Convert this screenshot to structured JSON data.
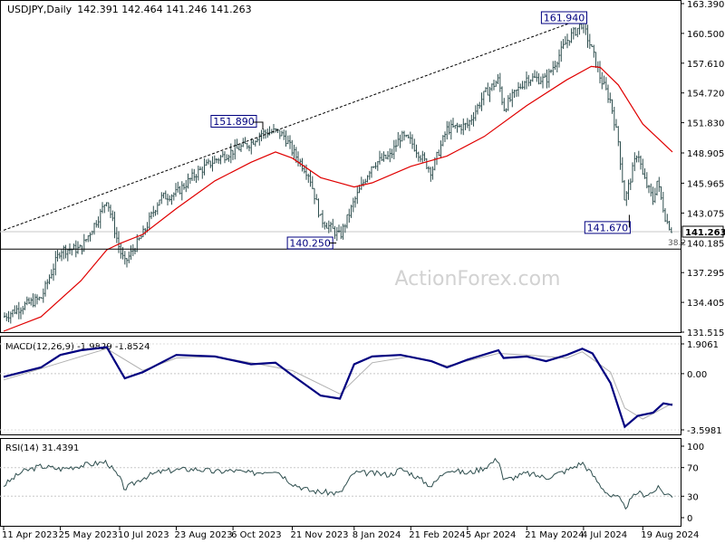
{
  "header": {
    "symbol": "USDJPY,Daily",
    "ohlc": "142.391 142.464 141.246 141.263"
  },
  "watermark": "ActionForex.com",
  "colors": {
    "price_bars": "#2f4f4f",
    "ma": "#e00000",
    "macd_line": "#000080",
    "macd_signal": "#b0b0b0",
    "rsi": "#2f4f4f",
    "grid": "#c8c8c8"
  },
  "chart_data": [
    {
      "type": "line",
      "title": "USDJPY,Daily",
      "x_labels": [
        "11 Apr 2023",
        "25 May 2023",
        "10 Jul 2023",
        "23 Aug 2023",
        "6 Oct 2023",
        "21 Nov 2023",
        "8 Jan 2024",
        "21 Feb 2024",
        "5 Apr 2024",
        "21 May 2024",
        "4 Jul 2024",
        "19 Aug 2024"
      ],
      "y_ticks": [
        "163.390",
        "160.500",
        "157.610",
        "154.720",
        "151.830",
        "148.905",
        "145.965",
        "143.075",
        "140.185",
        "137.295",
        "134.405",
        "131.515"
      ],
      "ylim": [
        131.515,
        163.39
      ],
      "price_label": "141.263",
      "annotations": [
        {
          "text": "161.940",
          "date": "2024-07-03",
          "value": 161.94
        },
        {
          "text": "151.890",
          "date": "2023-10-27",
          "value": 151.89
        },
        {
          "text": "140.250",
          "date": "2023-12-28",
          "value": 140.25
        },
        {
          "text": "141.670",
          "date": "2024-08-05",
          "value": 141.67
        },
        {
          "text": "38.2",
          "level": 139.58
        }
      ],
      "trendline": [
        {
          "date": "2023-04-11",
          "value": 141.4
        },
        {
          "date": "2024-07-03",
          "value": 161.94
        }
      ],
      "horizontal_levels": [
        141.263,
        139.58
      ],
      "series": [
        {
          "kind": "close",
          "points": [
            [
              "2023-04-11",
              133.0
            ],
            [
              "2023-04-25",
              134.0
            ],
            [
              "2023-05-10",
              134.8
            ],
            [
              "2023-05-25",
              139.5
            ],
            [
              "2023-06-10",
              139.6
            ],
            [
              "2023-06-25",
              143.0
            ],
            [
              "2023-06-30",
              144.5
            ],
            [
              "2023-07-10",
              139.5
            ],
            [
              "2023-07-14",
              138.2
            ],
            [
              "2023-07-28",
              141.0
            ],
            [
              "2023-08-10",
              144.5
            ],
            [
              "2023-08-23",
              145.0
            ],
            [
              "2023-09-08",
              147.0
            ],
            [
              "2023-09-22",
              148.2
            ],
            [
              "2023-10-06",
              149.1
            ],
            [
              "2023-10-20",
              149.9
            ],
            [
              "2023-10-27",
              150.8
            ],
            [
              "2023-11-08",
              151.0
            ],
            [
              "2023-11-15",
              150.5
            ],
            [
              "2023-11-21",
              149.1
            ],
            [
              "2023-12-04",
              146.8
            ],
            [
              "2023-12-13",
              142.5
            ],
            [
              "2023-12-28",
              140.8
            ],
            [
              "2024-01-08",
              144.2
            ],
            [
              "2024-01-22",
              147.8
            ],
            [
              "2024-02-05",
              148.6
            ],
            [
              "2024-02-13",
              150.5
            ],
            [
              "2024-02-21",
              150.0
            ],
            [
              "2024-03-08",
              147.1
            ],
            [
              "2024-03-20",
              151.2
            ],
            [
              "2024-04-05",
              151.6
            ],
            [
              "2024-04-18",
              154.6
            ],
            [
              "2024-04-29",
              156.0
            ],
            [
              "2024-05-03",
              153.2
            ],
            [
              "2024-05-21",
              156.2
            ],
            [
              "2024-06-05",
              156.0
            ],
            [
              "2024-06-21",
              159.8
            ],
            [
              "2024-07-03",
              161.5
            ],
            [
              "2024-07-11",
              158.7
            ],
            [
              "2024-07-17",
              156.2
            ],
            [
              "2024-07-25",
              153.9
            ],
            [
              "2024-07-31",
              150.0
            ],
            [
              "2024-08-05",
              144.2
            ],
            [
              "2024-08-15",
              149.2
            ],
            [
              "2024-08-19",
              146.7
            ],
            [
              "2024-08-27",
              144.3
            ],
            [
              "2024-08-30",
              146.2
            ],
            [
              "2024-09-06",
              142.4
            ],
            [
              "2024-09-11",
              141.263
            ]
          ]
        },
        {
          "kind": "moving-average",
          "points": [
            [
              "2023-04-11",
              131.6
            ],
            [
              "2023-05-10",
              133.0
            ],
            [
              "2023-06-10",
              136.5
            ],
            [
              "2023-06-30",
              139.5
            ],
            [
              "2023-07-10",
              140.1
            ],
            [
              "2023-07-28",
              141.0
            ],
            [
              "2023-08-23",
              143.5
            ],
            [
              "2023-09-22",
              146.2
            ],
            [
              "2023-10-20",
              148.0
            ],
            [
              "2023-11-08",
              149.0
            ],
            [
              "2023-11-21",
              148.4
            ],
            [
              "2023-12-13",
              146.5
            ],
            [
              "2024-01-08",
              145.6
            ],
            [
              "2024-01-22",
              146.0
            ],
            [
              "2024-02-21",
              147.6
            ],
            [
              "2024-03-20",
              148.6
            ],
            [
              "2024-04-18",
              150.5
            ],
            [
              "2024-05-21",
              153.5
            ],
            [
              "2024-06-21",
              156.0
            ],
            [
              "2024-07-10",
              157.3
            ],
            [
              "2024-07-17",
              157.2
            ],
            [
              "2024-07-31",
              155.5
            ],
            [
              "2024-08-19",
              151.7
            ],
            [
              "2024-09-11",
              149.0
            ]
          ]
        }
      ]
    },
    {
      "type": "line",
      "title": "MACD(12,26,9) -1.9829 -1.8524",
      "y_ticks": [
        "1.9061",
        "0.00",
        "-3.5981"
      ],
      "ylim": [
        -3.5981,
        1.9061
      ],
      "series": [
        {
          "kind": "macd",
          "points": [
            [
              "2023-04-11",
              -0.2
            ],
            [
              "2023-05-10",
              0.4
            ],
            [
              "2023-05-25",
              1.2
            ],
            [
              "2023-06-10",
              1.5
            ],
            [
              "2023-06-30",
              1.7
            ],
            [
              "2023-07-14",
              -0.3
            ],
            [
              "2023-07-28",
              0.1
            ],
            [
              "2023-08-23",
              1.2
            ],
            [
              "2023-09-22",
              1.1
            ],
            [
              "2023-10-20",
              0.6
            ],
            [
              "2023-11-08",
              0.7
            ],
            [
              "2023-11-21",
              -0.1
            ],
            [
              "2023-12-13",
              -1.4
            ],
            [
              "2023-12-28",
              -1.6
            ],
            [
              "2024-01-08",
              0.6
            ],
            [
              "2024-01-22",
              1.1
            ],
            [
              "2024-02-13",
              1.2
            ],
            [
              "2024-03-08",
              0.8
            ],
            [
              "2024-03-20",
              0.4
            ],
            [
              "2024-04-05",
              0.9
            ],
            [
              "2024-04-29",
              1.5
            ],
            [
              "2024-05-03",
              1.0
            ],
            [
              "2024-05-21",
              1.1
            ],
            [
              "2024-06-05",
              0.8
            ],
            [
              "2024-06-21",
              1.2
            ],
            [
              "2024-07-03",
              1.6
            ],
            [
              "2024-07-11",
              1.3
            ],
            [
              "2024-07-25",
              -0.6
            ],
            [
              "2024-08-05",
              -3.4
            ],
            [
              "2024-08-15",
              -2.7
            ],
            [
              "2024-08-27",
              -2.5
            ],
            [
              "2024-09-04",
              -1.9
            ],
            [
              "2024-09-11",
              -2.0
            ]
          ]
        },
        {
          "kind": "signal",
          "points": [
            [
              "2023-04-11",
              -0.4
            ],
            [
              "2023-05-25",
              0.7
            ],
            [
              "2023-06-30",
              1.6
            ],
            [
              "2023-07-28",
              0.2
            ],
            [
              "2023-08-23",
              1.0
            ],
            [
              "2023-09-22",
              1.1
            ],
            [
              "2023-10-20",
              0.7
            ],
            [
              "2023-11-21",
              0.2
            ],
            [
              "2023-12-28",
              -1.3
            ],
            [
              "2024-01-22",
              0.7
            ],
            [
              "2024-02-21",
              1.1
            ],
            [
              "2024-03-20",
              0.5
            ],
            [
              "2024-04-29",
              1.3
            ],
            [
              "2024-05-21",
              1.2
            ],
            [
              "2024-06-21",
              1.0
            ],
            [
              "2024-07-03",
              1.4
            ],
            [
              "2024-07-25",
              0.1
            ],
            [
              "2024-08-05",
              -2.2
            ],
            [
              "2024-08-19",
              -2.9
            ],
            [
              "2024-09-04",
              -2.2
            ],
            [
              "2024-09-11",
              -1.9
            ]
          ]
        }
      ]
    },
    {
      "type": "line",
      "title": "RSI(14) 31.4391",
      "y_ticks": [
        "100",
        "70",
        "30",
        "0"
      ],
      "ylim": [
        0,
        100
      ],
      "series": [
        {
          "kind": "rsi",
          "points": [
            [
              "2023-04-11",
              45
            ],
            [
              "2023-04-25",
              64
            ],
            [
              "2023-05-10",
              72
            ],
            [
              "2023-05-25",
              68
            ],
            [
              "2023-06-10",
              73
            ],
            [
              "2023-06-30",
              78
            ],
            [
              "2023-07-10",
              55
            ],
            [
              "2023-07-14",
              40
            ],
            [
              "2023-07-28",
              56
            ],
            [
              "2023-08-10",
              64
            ],
            [
              "2023-08-23",
              67
            ],
            [
              "2023-09-08",
              68
            ],
            [
              "2023-09-22",
              64
            ],
            [
              "2023-10-06",
              66
            ],
            [
              "2023-10-20",
              62
            ],
            [
              "2023-10-27",
              64
            ],
            [
              "2023-11-08",
              67
            ],
            [
              "2023-11-21",
              48
            ],
            [
              "2023-12-04",
              38
            ],
            [
              "2023-12-13",
              36
            ],
            [
              "2023-12-28",
              34
            ],
            [
              "2024-01-08",
              63
            ],
            [
              "2024-01-22",
              62
            ],
            [
              "2024-02-05",
              60
            ],
            [
              "2024-02-13",
              68
            ],
            [
              "2024-02-21",
              62
            ],
            [
              "2024-03-08",
              44
            ],
            [
              "2024-03-20",
              68
            ],
            [
              "2024-04-05",
              62
            ],
            [
              "2024-04-18",
              70
            ],
            [
              "2024-04-29",
              83
            ],
            [
              "2024-05-03",
              52
            ],
            [
              "2024-05-21",
              62
            ],
            [
              "2024-06-05",
              56
            ],
            [
              "2024-06-21",
              66
            ],
            [
              "2024-07-03",
              77
            ],
            [
              "2024-07-11",
              60
            ],
            [
              "2024-07-17",
              45
            ],
            [
              "2024-07-25",
              30
            ],
            [
              "2024-07-31",
              28
            ],
            [
              "2024-08-05",
              14
            ],
            [
              "2024-08-15",
              36
            ],
            [
              "2024-08-19",
              32
            ],
            [
              "2024-08-27",
              35
            ],
            [
              "2024-08-30",
              42
            ],
            [
              "2024-09-06",
              33
            ],
            [
              "2024-09-11",
              31
            ]
          ]
        }
      ]
    }
  ]
}
